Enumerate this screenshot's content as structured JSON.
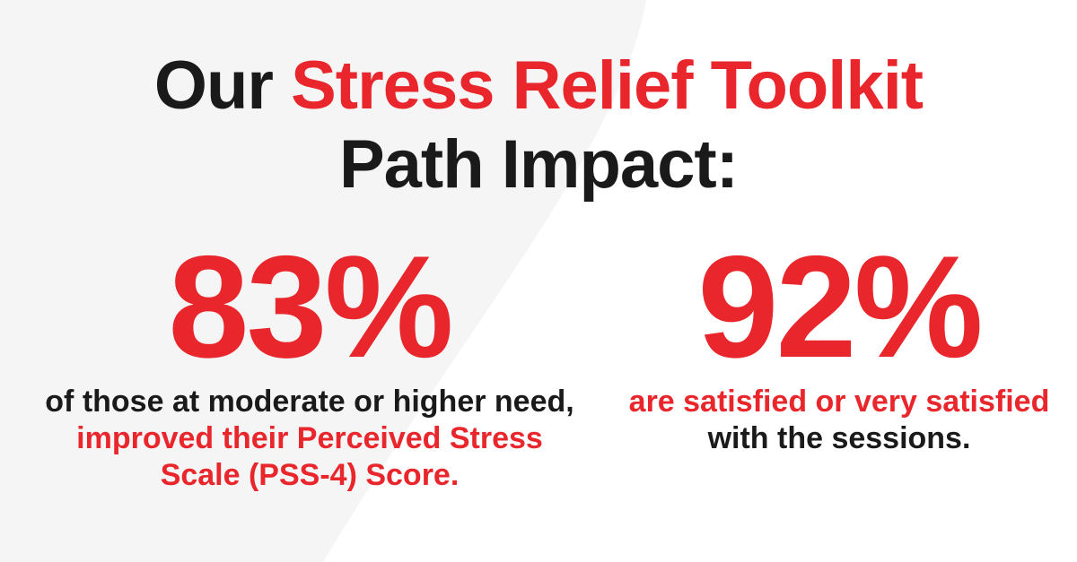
{
  "headline": {
    "prefix": "Our ",
    "highlight": "Stress Relief Toolkit",
    "line2": "Path Impact:"
  },
  "stats": [
    {
      "value": "83%",
      "caption_plain_1": "of those at moderate or higher need, ",
      "caption_highlight": "improved their Perceived Stress Scale (PSS-4) Score.",
      "caption_plain_2": ""
    },
    {
      "value": "92%",
      "caption_plain_1": "",
      "caption_highlight": "are satisfied or very satisfied",
      "caption_plain_2": " with the sessions."
    }
  ],
  "colors": {
    "accent": "#e8262b",
    "text": "#1a1a1a",
    "background": "#ffffff",
    "background_shape": "#f5f5f5"
  }
}
